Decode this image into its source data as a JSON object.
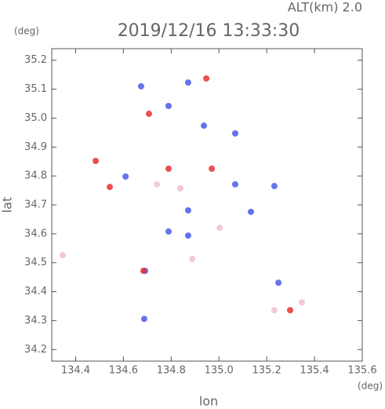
{
  "chart_data": {
    "type": "scatter",
    "title": "2019/12/16 13:33:30",
    "subtitle": "ALT(km) 2.0",
    "y_unit": "(deg)",
    "x_unit": "(deg)",
    "x_label": "lon",
    "y_label": "lat",
    "xlim": [
      134.3,
      135.6
    ],
    "xticks": [
      134.4,
      134.6,
      134.8,
      {
        "value": 135,
        "label": "135.0"
      },
      135.2,
      135.4,
      135.6
    ],
    "ylim": [
      34.16,
      35.24
    ],
    "yticks": [
      34.2,
      34.3,
      34.4,
      34.5,
      34.6,
      34.7,
      34.8,
      34.9,
      {
        "value": 35,
        "label": "35.0"
      },
      35.1,
      35.2
    ],
    "series": [
      {
        "color": "#4a5ae8",
        "x": [
          134.871,
          134.789,
          134.674,
          134.937,
          135.068,
          135.232,
          135.068,
          135.134,
          134.871,
          134.789,
          134.691,
          134.687,
          135.249,
          134.609,
          134.871
        ],
        "values": [
          35.123,
          35.042,
          35.11,
          34.974,
          34.947,
          34.765,
          34.771,
          34.676,
          34.594,
          34.608,
          34.472,
          34.306,
          34.431,
          34.798,
          34.681
        ]
      },
      {
        "color": "#e83030",
        "x": [
          134.947,
          134.789,
          134.707,
          135.298,
          134.543,
          134.484,
          134.97,
          134.684
        ],
        "values": [
          35.137,
          34.825,
          35.015,
          34.336,
          34.762,
          34.852,
          34.825,
          34.472
        ]
      },
      {
        "color": "#f0c0cc",
        "x": [
          134.838,
          134.74,
          134.888,
          135.232,
          135.347,
          134.346,
          135.003
        ],
        "values": [
          34.757,
          34.771,
          34.513,
          34.336,
          34.363,
          34.526,
          34.621
        ]
      }
    ]
  }
}
